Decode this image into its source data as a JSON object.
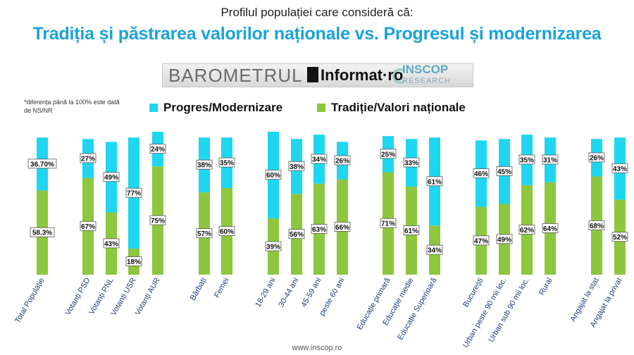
{
  "header": {
    "supertitle": "Profilul populației care consideră că:",
    "title": "Tradiția și păstrarea valorilor naționale vs. Progresul și modernizarea"
  },
  "logos": {
    "barometrul": "BAROMETRUL",
    "informat": "Informat·ro",
    "inscop": "INSCOP",
    "inscop_sub": "RESEARCH"
  },
  "note": "*diferența până la 100% este dată de NS/NR",
  "footer": "www.inscop.ro",
  "colors": {
    "progress": "#1fd6f0",
    "tradition": "#8dc63f"
  },
  "chart_data": {
    "type": "bar",
    "stacked": true,
    "ylim": [
      0,
      100
    ],
    "grid": false,
    "legend_placement": "top",
    "categories": [
      "Total Populație",
      "Votanți PSD",
      "Votanți PNL",
      "Votanți USR",
      "Votanți AUR",
      "Bărbați",
      "Femei",
      "18-29 ani",
      "30-44 ani",
      "45-59 ani",
      "peste 60 ani",
      "Educație primară",
      "Educație medie",
      "Educație Superioară",
      "București",
      "Urban peste 90 mii loc.",
      "Urban sub 90 mii loc.",
      "Rural",
      "Angajat la stat",
      "Angajat la privat"
    ],
    "series": [
      {
        "name": "Tradiție/Valori naționale",
        "values": [
          58.3,
          67,
          43,
          18,
          75,
          57,
          60,
          39,
          56,
          63,
          66,
          71,
          61,
          34,
          47,
          49,
          62,
          64,
          68,
          52
        ],
        "labels": [
          "58.3%",
          "67%",
          "43%",
          "18%",
          "75%",
          "57%",
          "60%",
          "39%",
          "56%",
          "63%",
          "66%",
          "71%",
          "61%",
          "34%",
          "47%",
          "49%",
          "62%",
          "64%",
          "68%",
          "52%"
        ]
      },
      {
        "name": "Progres/Modernizare",
        "values": [
          36.7,
          27,
          49,
          77,
          24,
          38,
          35,
          60,
          38,
          34,
          26,
          25,
          33,
          61,
          46,
          45,
          35,
          31,
          26,
          43
        ],
        "labels": [
          "36.70%",
          "27%",
          "49%",
          "77%",
          "24%",
          "38%",
          "35%",
          "60%",
          "38%",
          "34%",
          "26%",
          "25%",
          "33%",
          "61%",
          "46%",
          "45%",
          "35%",
          "31%",
          "26%",
          "43%"
        ]
      }
    ]
  }
}
